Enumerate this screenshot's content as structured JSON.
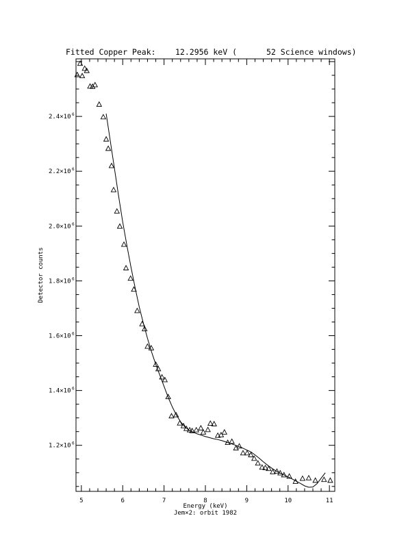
{
  "chart_data": {
    "type": "scatter",
    "title": {
      "prefix": "Fitted Copper Peak:",
      "value": "12.2956 keV (",
      "suffix": "52 Science windows)"
    },
    "xlabel": "Energy (keV)",
    "subtitle": "Jem×2: orbit 1982",
    "ylabel": "Detector counts",
    "xlim": [
      4.87,
      11.13
    ],
    "ylim": [
      1032000,
      2610000
    ],
    "grid": false,
    "x_ticks": [
      {
        "value": 5,
        "label": "5"
      },
      {
        "value": 6,
        "label": "6"
      },
      {
        "value": 7,
        "label": "7"
      },
      {
        "value": 8,
        "label": "8"
      },
      {
        "value": 9,
        "label": "9"
      },
      {
        "value": 10,
        "label": "10"
      },
      {
        "value": 11,
        "label": "11"
      }
    ],
    "y_ticks": [
      {
        "value": 1200000,
        "mantissa": "1.2×10",
        "exp": "6"
      },
      {
        "value": 1400000,
        "mantissa": "1.4×10",
        "exp": "6"
      },
      {
        "value": 1600000,
        "mantissa": "1.6×10",
        "exp": "6"
      },
      {
        "value": 1800000,
        "mantissa": "1.8×10",
        "exp": "6"
      },
      {
        "value": 2000000,
        "mantissa": "2.0×10",
        "exp": "6"
      },
      {
        "value": 2200000,
        "mantissa": "2.2×10",
        "exp": "6"
      },
      {
        "value": 2400000,
        "mantissa": "2.4×10",
        "exp": "6"
      }
    ],
    "series": [
      {
        "marker": "triangle",
        "x": [
          4.9,
          4.97,
          5.02,
          5.08,
          5.13,
          5.21,
          5.27,
          5.33,
          5.43,
          5.53,
          5.6,
          5.65,
          5.73,
          5.78,
          5.86,
          5.93,
          6.03,
          6.08,
          6.19,
          6.27,
          6.35,
          6.47,
          6.53,
          6.6,
          6.69,
          6.8,
          6.86,
          6.95,
          7.02,
          7.1,
          7.18,
          7.29,
          7.38,
          7.47,
          7.54,
          7.62,
          7.68,
          7.78,
          7.89,
          7.95,
          8.06,
          8.12,
          8.21,
          8.3,
          8.38,
          8.46,
          8.54,
          8.64,
          8.74,
          8.82,
          8.91,
          9.01,
          9.1,
          9.18,
          9.27,
          9.37,
          9.45,
          9.53,
          9.63,
          9.73,
          9.81,
          9.9,
          10.03,
          10.18,
          10.35,
          10.5,
          10.66,
          10.87,
          11.02
        ],
        "y": [
          2551000,
          2592000,
          2547000,
          2574000,
          2566000,
          2509000,
          2508000,
          2514000,
          2443000,
          2397000,
          2316000,
          2282000,
          2219000,
          2131000,
          2053000,
          1998000,
          1932000,
          1846000,
          1808000,
          1768000,
          1690000,
          1642000,
          1624000,
          1560000,
          1554000,
          1494000,
          1478000,
          1448000,
          1438000,
          1376000,
          1306000,
          1310000,
          1280000,
          1270000,
          1260000,
          1255000,
          1252000,
          1255000,
          1262000,
          1247000,
          1256000,
          1279000,
          1277000,
          1235000,
          1237000,
          1247000,
          1209000,
          1213000,
          1189000,
          1196000,
          1171000,
          1171000,
          1164000,
          1151000,
          1134000,
          1119000,
          1117000,
          1114000,
          1102000,
          1104000,
          1098000,
          1091000,
          1086000,
          1067000,
          1078000,
          1080000,
          1071000,
          1074000,
          1071000
        ]
      },
      {
        "marker": "line",
        "x": [
          5.6,
          5.7,
          5.8,
          5.9,
          6.0,
          6.1,
          6.2,
          6.3,
          6.4,
          6.5,
          6.6,
          6.7,
          6.8,
          6.9,
          7.0,
          7.1,
          7.2,
          7.3,
          7.4,
          7.5,
          7.6,
          7.7,
          7.8,
          7.9,
          8.0,
          8.1,
          8.2,
          8.3,
          8.4,
          8.5,
          8.6,
          8.7,
          8.8,
          8.9,
          9.0,
          9.1,
          9.2,
          9.3,
          9.4,
          9.5,
          9.6,
          9.7,
          9.8,
          9.9,
          10.0,
          10.1,
          10.2,
          10.3,
          10.4,
          10.5,
          10.6,
          10.7,
          10.8,
          10.9
        ],
        "y": [
          2410000,
          2310000,
          2210000,
          2110000,
          2015000,
          1930000,
          1850000,
          1775000,
          1705000,
          1645000,
          1590000,
          1540000,
          1495000,
          1455000,
          1415000,
          1375000,
          1340000,
          1310000,
          1286000,
          1268000,
          1256000,
          1248000,
          1242000,
          1237000,
          1232000,
          1228000,
          1224000,
          1221000,
          1217000,
          1212000,
          1207000,
          1202000,
          1196000,
          1190000,
          1183000,
          1176000,
          1165000,
          1153000,
          1140000,
          1128000,
          1117000,
          1107000,
          1099000,
          1092000,
          1085000,
          1077000,
          1069000,
          1061000,
          1052000,
          1047000,
          1048000,
          1060000,
          1080000,
          1100000
        ]
      }
    ]
  }
}
